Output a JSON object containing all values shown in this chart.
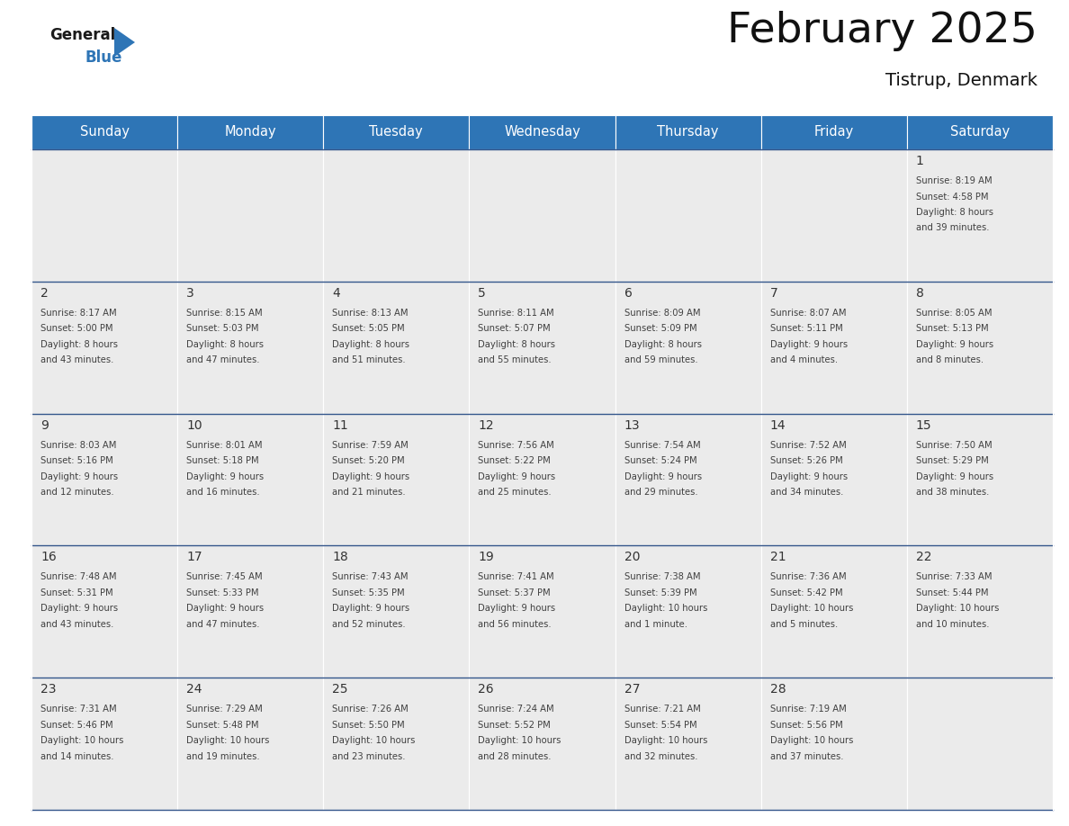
{
  "title": "February 2025",
  "subtitle": "Tistrup, Denmark",
  "header_color": "#2E75B6",
  "header_text_color": "#FFFFFF",
  "cell_bg_color": "#EBEBEB",
  "day_number_color": "#333333",
  "info_text_color": "#404040",
  "border_color": "#2E4B8F",
  "days_of_week": [
    "Sunday",
    "Monday",
    "Tuesday",
    "Wednesday",
    "Thursday",
    "Friday",
    "Saturday"
  ],
  "weeks": [
    [
      null,
      null,
      null,
      null,
      null,
      null,
      {
        "day": 1,
        "sunrise": "8:19 AM",
        "sunset": "4:58 PM",
        "daylight1": "8 hours",
        "daylight2": "and 39 minutes."
      }
    ],
    [
      {
        "day": 2,
        "sunrise": "8:17 AM",
        "sunset": "5:00 PM",
        "daylight1": "8 hours",
        "daylight2": "and 43 minutes."
      },
      {
        "day": 3,
        "sunrise": "8:15 AM",
        "sunset": "5:03 PM",
        "daylight1": "8 hours",
        "daylight2": "and 47 minutes."
      },
      {
        "day": 4,
        "sunrise": "8:13 AM",
        "sunset": "5:05 PM",
        "daylight1": "8 hours",
        "daylight2": "and 51 minutes."
      },
      {
        "day": 5,
        "sunrise": "8:11 AM",
        "sunset": "5:07 PM",
        "daylight1": "8 hours",
        "daylight2": "and 55 minutes."
      },
      {
        "day": 6,
        "sunrise": "8:09 AM",
        "sunset": "5:09 PM",
        "daylight1": "8 hours",
        "daylight2": "and 59 minutes."
      },
      {
        "day": 7,
        "sunrise": "8:07 AM",
        "sunset": "5:11 PM",
        "daylight1": "9 hours",
        "daylight2": "and 4 minutes."
      },
      {
        "day": 8,
        "sunrise": "8:05 AM",
        "sunset": "5:13 PM",
        "daylight1": "9 hours",
        "daylight2": "and 8 minutes."
      }
    ],
    [
      {
        "day": 9,
        "sunrise": "8:03 AM",
        "sunset": "5:16 PM",
        "daylight1": "9 hours",
        "daylight2": "and 12 minutes."
      },
      {
        "day": 10,
        "sunrise": "8:01 AM",
        "sunset": "5:18 PM",
        "daylight1": "9 hours",
        "daylight2": "and 16 minutes."
      },
      {
        "day": 11,
        "sunrise": "7:59 AM",
        "sunset": "5:20 PM",
        "daylight1": "9 hours",
        "daylight2": "and 21 minutes."
      },
      {
        "day": 12,
        "sunrise": "7:56 AM",
        "sunset": "5:22 PM",
        "daylight1": "9 hours",
        "daylight2": "and 25 minutes."
      },
      {
        "day": 13,
        "sunrise": "7:54 AM",
        "sunset": "5:24 PM",
        "daylight1": "9 hours",
        "daylight2": "and 29 minutes."
      },
      {
        "day": 14,
        "sunrise": "7:52 AM",
        "sunset": "5:26 PM",
        "daylight1": "9 hours",
        "daylight2": "and 34 minutes."
      },
      {
        "day": 15,
        "sunrise": "7:50 AM",
        "sunset": "5:29 PM",
        "daylight1": "9 hours",
        "daylight2": "and 38 minutes."
      }
    ],
    [
      {
        "day": 16,
        "sunrise": "7:48 AM",
        "sunset": "5:31 PM",
        "daylight1": "9 hours",
        "daylight2": "and 43 minutes."
      },
      {
        "day": 17,
        "sunrise": "7:45 AM",
        "sunset": "5:33 PM",
        "daylight1": "9 hours",
        "daylight2": "and 47 minutes."
      },
      {
        "day": 18,
        "sunrise": "7:43 AM",
        "sunset": "5:35 PM",
        "daylight1": "9 hours",
        "daylight2": "and 52 minutes."
      },
      {
        "day": 19,
        "sunrise": "7:41 AM",
        "sunset": "5:37 PM",
        "daylight1": "9 hours",
        "daylight2": "and 56 minutes."
      },
      {
        "day": 20,
        "sunrise": "7:38 AM",
        "sunset": "5:39 PM",
        "daylight1": "10 hours",
        "daylight2": "and 1 minute."
      },
      {
        "day": 21,
        "sunrise": "7:36 AM",
        "sunset": "5:42 PM",
        "daylight1": "10 hours",
        "daylight2": "and 5 minutes."
      },
      {
        "day": 22,
        "sunrise": "7:33 AM",
        "sunset": "5:44 PM",
        "daylight1": "10 hours",
        "daylight2": "and 10 minutes."
      }
    ],
    [
      {
        "day": 23,
        "sunrise": "7:31 AM",
        "sunset": "5:46 PM",
        "daylight1": "10 hours",
        "daylight2": "and 14 minutes."
      },
      {
        "day": 24,
        "sunrise": "7:29 AM",
        "sunset": "5:48 PM",
        "daylight1": "10 hours",
        "daylight2": "and 19 minutes."
      },
      {
        "day": 25,
        "sunrise": "7:26 AM",
        "sunset": "5:50 PM",
        "daylight1": "10 hours",
        "daylight2": "and 23 minutes."
      },
      {
        "day": 26,
        "sunrise": "7:24 AM",
        "sunset": "5:52 PM",
        "daylight1": "10 hours",
        "daylight2": "and 28 minutes."
      },
      {
        "day": 27,
        "sunrise": "7:21 AM",
        "sunset": "5:54 PM",
        "daylight1": "10 hours",
        "daylight2": "and 32 minutes."
      },
      {
        "day": 28,
        "sunrise": "7:19 AM",
        "sunset": "5:56 PM",
        "daylight1": "10 hours",
        "daylight2": "and 37 minutes."
      },
      null
    ]
  ]
}
